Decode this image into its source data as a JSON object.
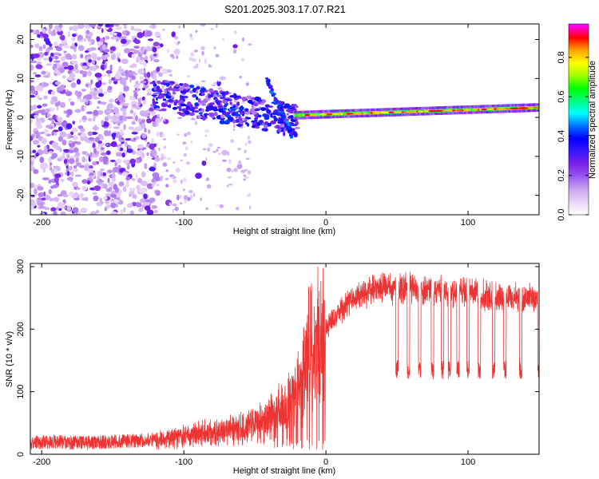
{
  "figure_title": "S201.2025.303.17.07.R21",
  "colors": {
    "snr_line": "#ee3333",
    "axes": "#000000",
    "background": "#ffffff"
  },
  "chart_data": [
    {
      "type": "heatmap",
      "name": "spectrogram",
      "xlabel": "Height of straight line (km)",
      "ylabel": "Frequency (Hz)",
      "xlim": [
        -208,
        150
      ],
      "ylim": [
        -25,
        24
      ],
      "xticks": [
        -200,
        -100,
        0,
        100
      ],
      "yticks": [
        -20,
        -10,
        0,
        10,
        20
      ],
      "colorbar": {
        "label": "Normalized spectral amplitude",
        "range": [
          0.0,
          0.97
        ],
        "ticks": [
          0.0,
          0.2,
          0.4,
          0.6,
          0.8
        ],
        "tick_labels": [
          "0.0",
          "0.2",
          "0.4",
          "0.6",
          "0.8"
        ],
        "colormap": [
          "#ffffff",
          "#e8d4f6",
          "#c9a4f2",
          "#9a5af0",
          "#7a1fe8",
          "#3b18ff",
          "#0000ff",
          "#0070ff",
          "#00ffff",
          "#00ff80",
          "#00ff00",
          "#a0ff00",
          "#ffff00",
          "#ffa500",
          "#ff0000",
          "#ff00ff"
        ]
      },
      "regions": [
        {
          "x_from": -208,
          "x_to": -120,
          "description": "broadband noise",
          "amplitude": 0.12
        },
        {
          "x_from": -120,
          "x_to": -20,
          "description": "descending signal band",
          "freq_start": 6,
          "freq_end": -3,
          "amplitude": 0.3
        },
        {
          "x_from": -20,
          "x_to": 150,
          "description": "steady signal band",
          "freq_start": 0.5,
          "freq_end": 2.5,
          "amplitude": 0.85
        }
      ]
    },
    {
      "type": "line",
      "name": "snr",
      "xlabel": "Height of straight line (km)",
      "ylabel": "SNR (10 * v/v)",
      "xlim": [
        -208,
        150
      ],
      "ylim": [
        0,
        305
      ],
      "xticks": [
        -200,
        -100,
        0,
        100
      ],
      "yticks": [
        0,
        100,
        200,
        300
      ],
      "series": [
        {
          "name": "SNR",
          "color": "#ee3333",
          "x": [
            -208,
            -190,
            -170,
            -150,
            -130,
            -110,
            -90,
            -70,
            -60,
            -50,
            -40,
            -30,
            -25,
            -20,
            -15,
            -10,
            0,
            10,
            20,
            30,
            40,
            50,
            60,
            70,
            80,
            90,
            100,
            110,
            120,
            130,
            140,
            150
          ],
          "y": [
            18,
            20,
            18,
            20,
            22,
            25,
            33,
            38,
            40,
            45,
            60,
            75,
            80,
            100,
            150,
            170,
            200,
            230,
            250,
            260,
            270,
            262,
            268,
            265,
            262,
            258,
            260,
            255,
            250,
            252,
            250,
            250
          ],
          "dropouts": [
            50,
            58,
            66,
            75,
            82,
            87,
            93,
            100,
            108,
            118,
            126,
            137,
            150
          ],
          "dropout_level": 120
        }
      ]
    }
  ]
}
